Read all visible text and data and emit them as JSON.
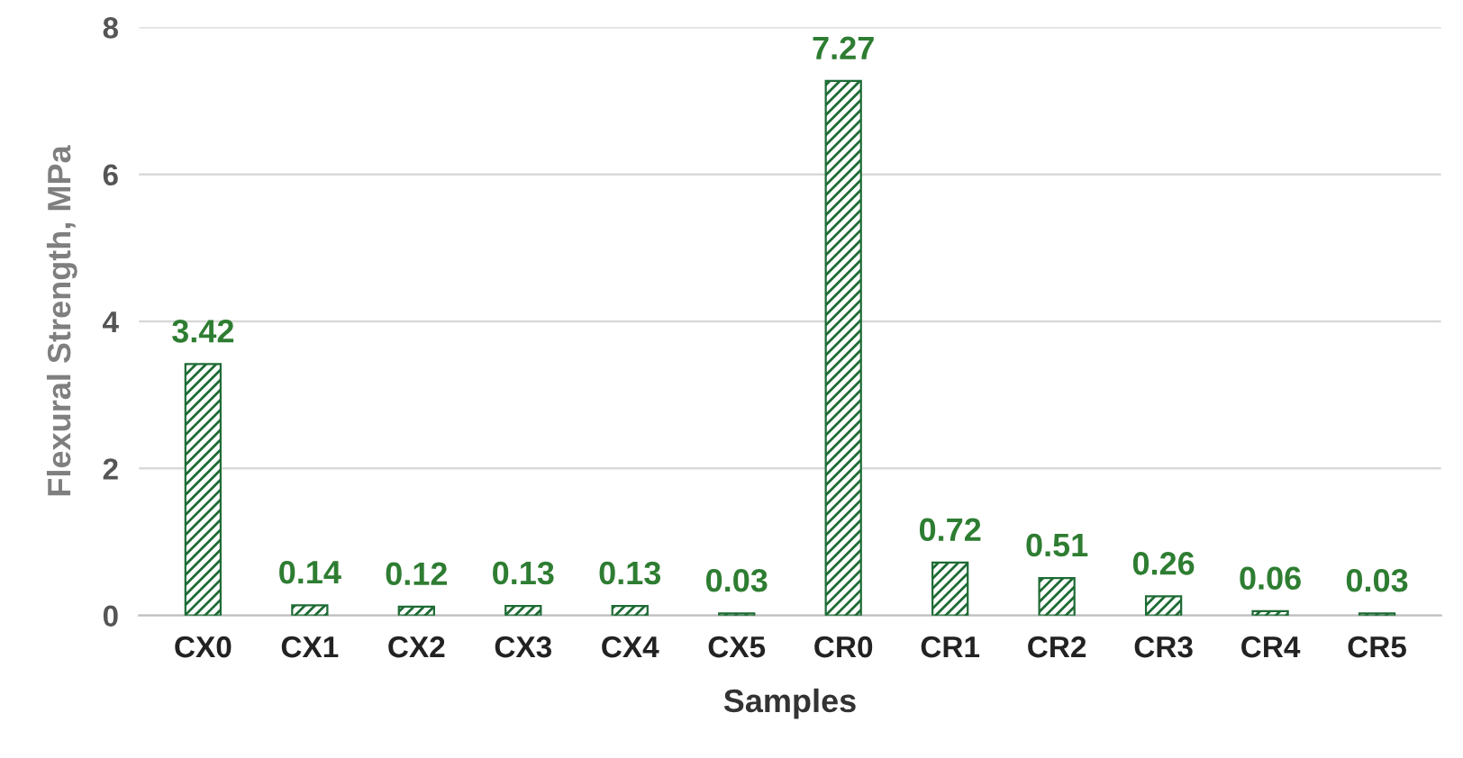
{
  "chart_data": {
    "type": "bar",
    "xlabel": "Samples",
    "ylabel": "Flexural Strength, MPa",
    "categories": [
      "CX0",
      "CX1",
      "CX2",
      "CX3",
      "CX4",
      "CX5",
      "CR0",
      "CR1",
      "CR2",
      "CR3",
      "CR4",
      "CR5"
    ],
    "values": [
      3.42,
      0.14,
      0.12,
      0.13,
      0.13,
      0.03,
      7.27,
      0.72,
      0.51,
      0.26,
      0.06,
      0.03
    ],
    "color": "#1e6b35",
    "ylim": [
      0,
      8
    ],
    "yticks": [
      0,
      2,
      4,
      6,
      8
    ],
    "grid": "y",
    "data_labels": true
  }
}
